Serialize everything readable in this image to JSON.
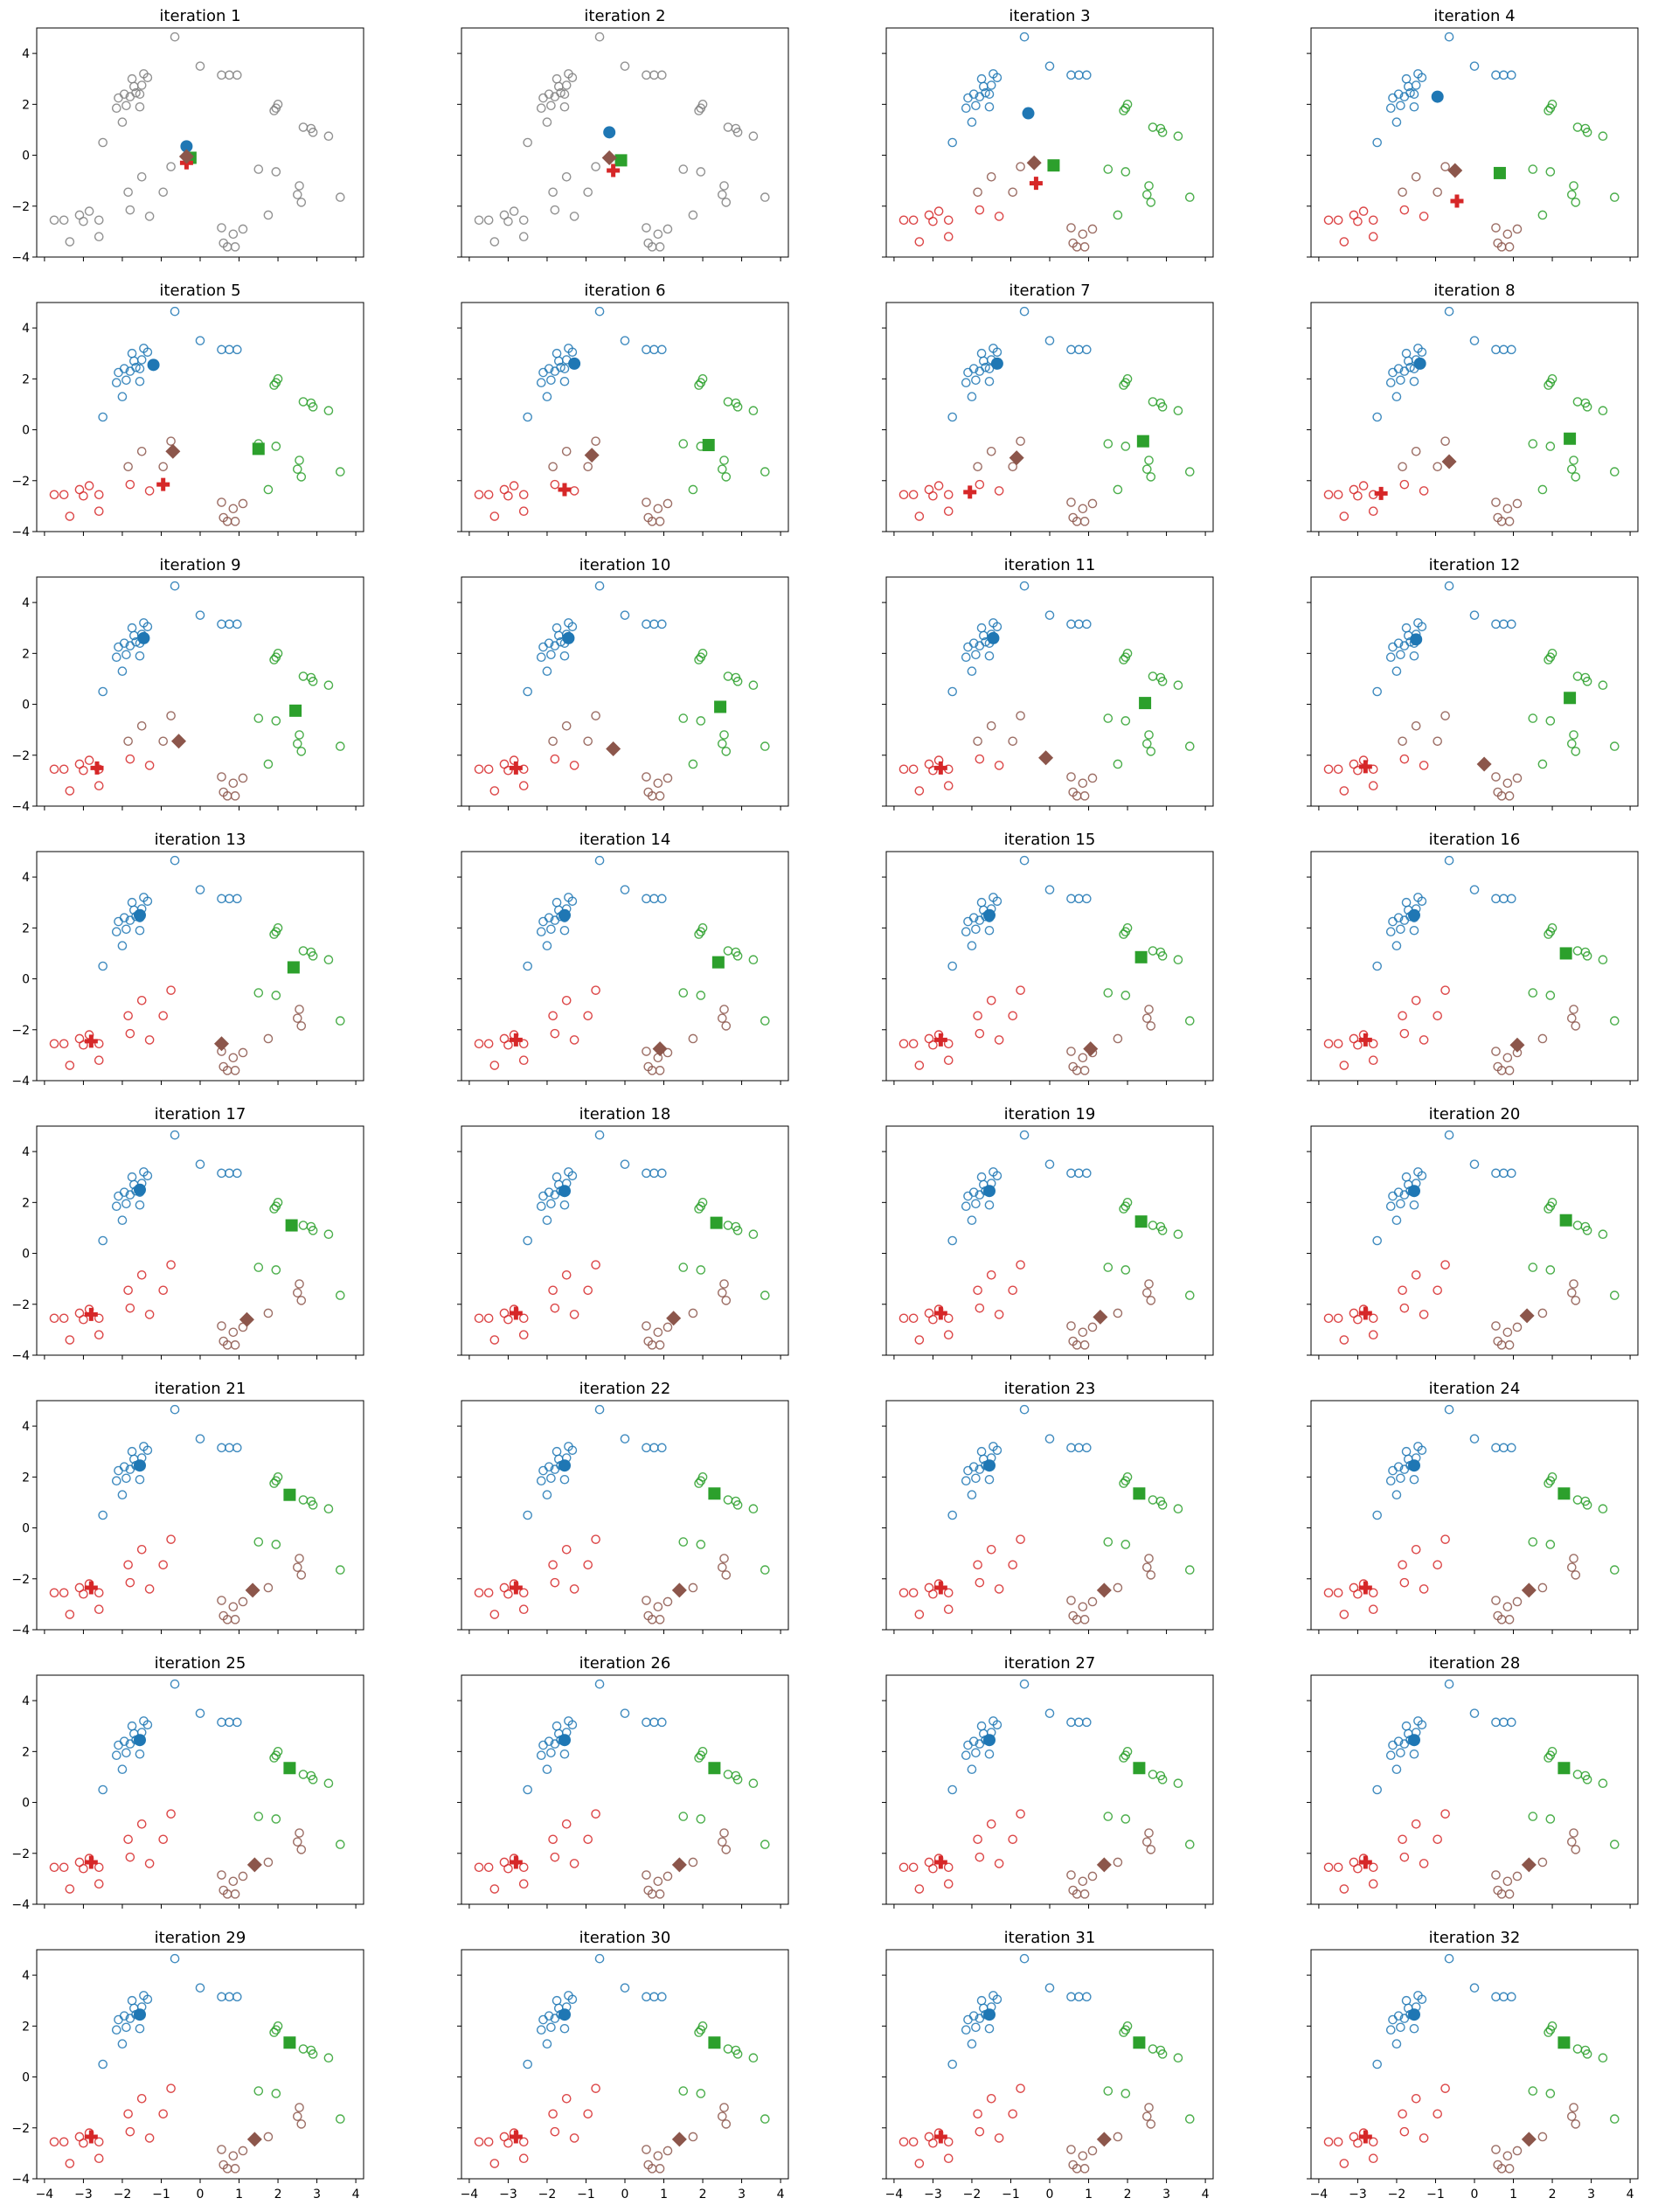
{
  "chart_data": {
    "type": "scatter",
    "layout": "small-multiples grid, 8 rows x 4 columns, shared x and y axes",
    "xlim": [
      -4.2,
      4.2
    ],
    "ylim": [
      -4,
      5
    ],
    "xticks": [
      -4,
      -3,
      -2,
      -1,
      0,
      1,
      2,
      3,
      4
    ],
    "yticks": [
      -4,
      -2,
      0,
      2,
      4
    ],
    "tick_labels_x": [
      "−4",
      "−3",
      "−2",
      "−1",
      "0",
      "1",
      "2",
      "3",
      "4"
    ],
    "tick_labels_y": [
      "−4",
      "−2",
      "0",
      "2",
      "4"
    ],
    "colors": {
      "blue": "#1f77b4",
      "green": "#2ca02c",
      "red": "#d62728",
      "brown": "#8c564b",
      "gray": "#7f7f7f"
    },
    "points": [
      [
        -0.65,
        4.65
      ],
      [
        0.0,
        3.5
      ],
      [
        0.55,
        3.15
      ],
      [
        0.75,
        3.15
      ],
      [
        0.95,
        3.15
      ],
      [
        -1.45,
        3.2
      ],
      [
        -1.35,
        3.05
      ],
      [
        -1.75,
        3.0
      ],
      [
        -1.5,
        2.75
      ],
      [
        -1.7,
        2.7
      ],
      [
        -1.65,
        2.45
      ],
      [
        -1.95,
        2.4
      ],
      [
        -1.8,
        2.3
      ],
      [
        -2.1,
        2.25
      ],
      [
        -1.55,
        2.4
      ],
      [
        -1.9,
        1.95
      ],
      [
        -1.55,
        1.9
      ],
      [
        -2.15,
        1.85
      ],
      [
        -2.0,
        1.3
      ],
      [
        -2.5,
        0.5
      ],
      [
        1.9,
        1.75
      ],
      [
        2.0,
        2.0
      ],
      [
        1.95,
        1.85
      ],
      [
        2.65,
        1.1
      ],
      [
        2.85,
        1.05
      ],
      [
        2.9,
        0.9
      ],
      [
        3.3,
        0.75
      ],
      [
        1.5,
        -0.55
      ],
      [
        1.95,
        -0.65
      ],
      [
        2.55,
        -1.2
      ],
      [
        2.5,
        -1.55
      ],
      [
        2.6,
        -1.85
      ],
      [
        3.6,
        -1.65
      ],
      [
        1.75,
        -2.35
      ],
      [
        -0.75,
        -0.45
      ],
      [
        -1.5,
        -0.85
      ],
      [
        -1.85,
        -1.45
      ],
      [
        -0.95,
        -1.45
      ],
      [
        -1.8,
        -2.15
      ],
      [
        -1.3,
        -2.4
      ],
      [
        -3.75,
        -2.55
      ],
      [
        -3.5,
        -2.55
      ],
      [
        -3.0,
        -2.6
      ],
      [
        -3.1,
        -2.35
      ],
      [
        -2.85,
        -2.2
      ],
      [
        -2.6,
        -2.55
      ],
      [
        -2.6,
        -3.2
      ],
      [
        -3.35,
        -3.4
      ],
      [
        0.55,
        -2.85
      ],
      [
        0.6,
        -3.45
      ],
      [
        0.7,
        -3.6
      ],
      [
        0.9,
        -3.6
      ],
      [
        0.85,
        -3.1
      ],
      [
        1.1,
        -2.9
      ]
    ],
    "assignments": {
      "initial": [
        4,
        4,
        4,
        4,
        4,
        4,
        4,
        4,
        4,
        4,
        4,
        4,
        4,
        4,
        4,
        4,
        4,
        4,
        4,
        4,
        4,
        4,
        4,
        4,
        4,
        4,
        4,
        4,
        4,
        4,
        4,
        4,
        4,
        4,
        4,
        4,
        4,
        4,
        4,
        4,
        4,
        4,
        4,
        4,
        4,
        4,
        4,
        4,
        4,
        4,
        4,
        4,
        4,
        4
      ],
      "partial": [
        0,
        0,
        0,
        0,
        0,
        0,
        0,
        0,
        0,
        0,
        0,
        0,
        0,
        0,
        0,
        0,
        0,
        0,
        0,
        0,
        1,
        1,
        1,
        1,
        1,
        1,
        1,
        1,
        1,
        1,
        1,
        1,
        1,
        1,
        3,
        3,
        3,
        3,
        2,
        2,
        2,
        2,
        2,
        2,
        2,
        2,
        2,
        2,
        3,
        3,
        3,
        3,
        3,
        3
      ],
      "final": [
        0,
        0,
        0,
        0,
        0,
        0,
        0,
        0,
        0,
        0,
        0,
        0,
        0,
        0,
        0,
        0,
        0,
        0,
        0,
        0,
        1,
        1,
        1,
        1,
        1,
        1,
        1,
        1,
        1,
        3,
        3,
        3,
        1,
        3,
        2,
        2,
        2,
        2,
        2,
        2,
        2,
        2,
        2,
        2,
        2,
        2,
        2,
        2,
        3,
        3,
        3,
        3,
        3,
        3
      ]
    },
    "centroid_markers": [
      "circle",
      "square",
      "plus",
      "diamond"
    ],
    "centroid_colors": [
      "#1f77b4",
      "#2ca02c",
      "#d62728",
      "#8c564b"
    ],
    "panels": [
      {
        "title": "iteration 1",
        "assign": "initial",
        "centroids": [
          [
            -0.35,
            0.35
          ],
          [
            -0.25,
            -0.1
          ],
          [
            -0.35,
            -0.3
          ],
          [
            -0.35,
            -0.05
          ]
        ]
      },
      {
        "title": "iteration 2",
        "assign": "initial",
        "centroids": [
          [
            -0.4,
            0.9
          ],
          [
            -0.1,
            -0.2
          ],
          [
            -0.3,
            -0.6
          ],
          [
            -0.4,
            -0.1
          ]
        ]
      },
      {
        "title": "iteration 3",
        "assign": "partial",
        "centroids": [
          [
            -0.55,
            1.65
          ],
          [
            0.1,
            -0.4
          ],
          [
            -0.35,
            -1.1
          ],
          [
            -0.4,
            -0.3
          ]
        ]
      },
      {
        "title": "iteration 4",
        "assign": "partial",
        "centroids": [
          [
            -0.95,
            2.3
          ],
          [
            0.65,
            -0.7
          ],
          [
            -0.45,
            -1.8
          ],
          [
            -0.5,
            -0.6
          ]
        ]
      },
      {
        "title": "iteration 5",
        "assign": "partial",
        "centroids": [
          [
            -1.2,
            2.55
          ],
          [
            1.5,
            -0.75
          ],
          [
            -0.95,
            -2.15
          ],
          [
            -0.7,
            -0.85
          ]
        ]
      },
      {
        "title": "iteration 6",
        "assign": "partial",
        "centroids": [
          [
            -1.3,
            2.6
          ],
          [
            2.15,
            -0.6
          ],
          [
            -1.55,
            -2.35
          ],
          [
            -0.85,
            -1.0
          ]
        ]
      },
      {
        "title": "iteration 7",
        "assign": "partial",
        "centroids": [
          [
            -1.35,
            2.6
          ],
          [
            2.4,
            -0.45
          ],
          [
            -2.05,
            -2.45
          ],
          [
            -0.85,
            -1.1
          ]
        ]
      },
      {
        "title": "iteration 8",
        "assign": "partial",
        "centroids": [
          [
            -1.4,
            2.6
          ],
          [
            2.45,
            -0.35
          ],
          [
            -2.4,
            -2.5
          ],
          [
            -0.65,
            -1.25
          ]
        ]
      },
      {
        "title": "iteration 9",
        "assign": "partial",
        "centroids": [
          [
            -1.45,
            2.6
          ],
          [
            2.45,
            -0.25
          ],
          [
            -2.65,
            -2.5
          ],
          [
            -0.55,
            -1.45
          ]
        ]
      },
      {
        "title": "iteration 10",
        "assign": "partial",
        "centroids": [
          [
            -1.45,
            2.6
          ],
          [
            2.45,
            -0.1
          ],
          [
            -2.8,
            -2.5
          ],
          [
            -0.3,
            -1.75
          ]
        ]
      },
      {
        "title": "iteration 11",
        "assign": "partial",
        "centroids": [
          [
            -1.45,
            2.6
          ],
          [
            2.45,
            0.05
          ],
          [
            -2.8,
            -2.5
          ],
          [
            -0.1,
            -2.1
          ]
        ]
      },
      {
        "title": "iteration 12",
        "assign": "partial",
        "centroids": [
          [
            -1.5,
            2.55
          ],
          [
            2.45,
            0.25
          ],
          [
            -2.8,
            -2.45
          ],
          [
            0.25,
            -2.35
          ]
        ]
      },
      {
        "title": "iteration 13",
        "assign": "final",
        "centroids": [
          [
            -1.55,
            2.5
          ],
          [
            2.4,
            0.45
          ],
          [
            -2.8,
            -2.45
          ],
          [
            0.55,
            -2.55
          ]
        ]
      },
      {
        "title": "iteration 14",
        "assign": "final",
        "centroids": [
          [
            -1.55,
            2.5
          ],
          [
            2.4,
            0.65
          ],
          [
            -2.8,
            -2.4
          ],
          [
            0.9,
            -2.75
          ]
        ]
      },
      {
        "title": "iteration 15",
        "assign": "final",
        "centroids": [
          [
            -1.55,
            2.5
          ],
          [
            2.35,
            0.85
          ],
          [
            -2.8,
            -2.4
          ],
          [
            1.05,
            -2.75
          ]
        ]
      },
      {
        "title": "iteration 16",
        "assign": "final",
        "centroids": [
          [
            -1.55,
            2.5
          ],
          [
            2.35,
            1.0
          ],
          [
            -2.8,
            -2.4
          ],
          [
            1.1,
            -2.6
          ]
        ]
      },
      {
        "title": "iteration 17",
        "assign": "final",
        "centroids": [
          [
            -1.55,
            2.5
          ],
          [
            2.35,
            1.1
          ],
          [
            -2.8,
            -2.4
          ],
          [
            1.2,
            -2.6
          ]
        ]
      },
      {
        "title": "iteration 18",
        "assign": "final",
        "centroids": [
          [
            -1.55,
            2.45
          ],
          [
            2.35,
            1.2
          ],
          [
            -2.8,
            -2.35
          ],
          [
            1.25,
            -2.55
          ]
        ]
      },
      {
        "title": "iteration 19",
        "assign": "final",
        "centroids": [
          [
            -1.55,
            2.45
          ],
          [
            2.35,
            1.25
          ],
          [
            -2.8,
            -2.35
          ],
          [
            1.3,
            -2.5
          ]
        ]
      },
      {
        "title": "iteration 20",
        "assign": "final",
        "centroids": [
          [
            -1.55,
            2.45
          ],
          [
            2.35,
            1.3
          ],
          [
            -2.8,
            -2.35
          ],
          [
            1.35,
            -2.45
          ]
        ]
      },
      {
        "title": "iteration 21",
        "assign": "final",
        "centroids": [
          [
            -1.55,
            2.45
          ],
          [
            2.3,
            1.3
          ],
          [
            -2.8,
            -2.35
          ],
          [
            1.35,
            -2.45
          ]
        ]
      },
      {
        "title": "iteration 22",
        "assign": "final",
        "centroids": [
          [
            -1.55,
            2.45
          ],
          [
            2.3,
            1.35
          ],
          [
            -2.8,
            -2.35
          ],
          [
            1.4,
            -2.45
          ]
        ]
      },
      {
        "title": "iteration 23",
        "assign": "final",
        "centroids": [
          [
            -1.55,
            2.45
          ],
          [
            2.3,
            1.35
          ],
          [
            -2.8,
            -2.35
          ],
          [
            1.4,
            -2.45
          ]
        ]
      },
      {
        "title": "iteration 24",
        "assign": "final",
        "centroids": [
          [
            -1.55,
            2.45
          ],
          [
            2.3,
            1.35
          ],
          [
            -2.8,
            -2.35
          ],
          [
            1.4,
            -2.45
          ]
        ]
      },
      {
        "title": "iteration 25",
        "assign": "final",
        "centroids": [
          [
            -1.55,
            2.45
          ],
          [
            2.3,
            1.35
          ],
          [
            -2.8,
            -2.35
          ],
          [
            1.4,
            -2.45
          ]
        ]
      },
      {
        "title": "iteration 26",
        "assign": "final",
        "centroids": [
          [
            -1.55,
            2.45
          ],
          [
            2.3,
            1.35
          ],
          [
            -2.8,
            -2.35
          ],
          [
            1.4,
            -2.45
          ]
        ]
      },
      {
        "title": "iteration 27",
        "assign": "final",
        "centroids": [
          [
            -1.55,
            2.45
          ],
          [
            2.3,
            1.35
          ],
          [
            -2.8,
            -2.35
          ],
          [
            1.4,
            -2.45
          ]
        ]
      },
      {
        "title": "iteration 28",
        "assign": "final",
        "centroids": [
          [
            -1.55,
            2.45
          ],
          [
            2.3,
            1.35
          ],
          [
            -2.8,
            -2.35
          ],
          [
            1.4,
            -2.45
          ]
        ]
      },
      {
        "title": "iteration 29",
        "assign": "final",
        "centroids": [
          [
            -1.55,
            2.45
          ],
          [
            2.3,
            1.35
          ],
          [
            -2.8,
            -2.35
          ],
          [
            1.4,
            -2.45
          ]
        ]
      },
      {
        "title": "iteration 30",
        "assign": "final",
        "centroids": [
          [
            -1.55,
            2.45
          ],
          [
            2.3,
            1.35
          ],
          [
            -2.8,
            -2.35
          ],
          [
            1.4,
            -2.45
          ]
        ]
      },
      {
        "title": "iteration 31",
        "assign": "final",
        "centroids": [
          [
            -1.55,
            2.45
          ],
          [
            2.3,
            1.35
          ],
          [
            -2.8,
            -2.35
          ],
          [
            1.4,
            -2.45
          ]
        ]
      },
      {
        "title": "iteration 32",
        "assign": "final",
        "centroids": [
          [
            -1.55,
            2.45
          ],
          [
            2.3,
            1.35
          ],
          [
            -2.8,
            -2.35
          ],
          [
            1.4,
            -2.45
          ]
        ]
      }
    ]
  }
}
